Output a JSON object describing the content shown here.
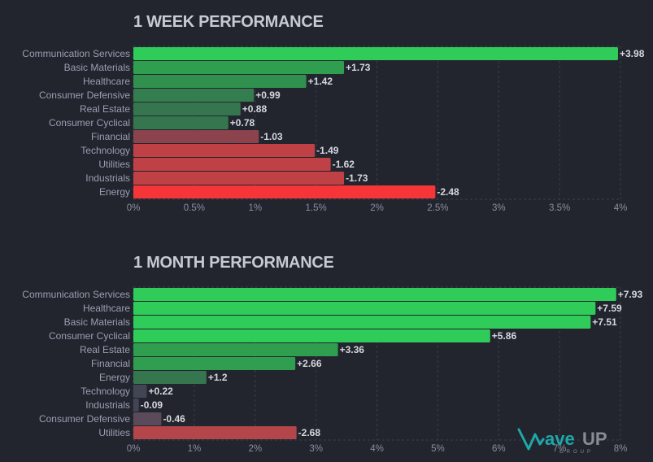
{
  "logo": {
    "name": "WaveUP",
    "wave_text": "ave",
    "up_text": "UP",
    "sub": "GROUP"
  },
  "chart_data": [
    {
      "type": "bar",
      "orientation": "horizontal",
      "title": "1 WEEK PERFORMANCE",
      "xlabel": "",
      "ylabel": "",
      "xlim": [
        0,
        4
      ],
      "x_ticks": [
        "0%",
        "0.5%",
        "1%",
        "1.5%",
        "2%",
        "2.5%",
        "3%",
        "3.5%",
        "4%"
      ],
      "x_tick_values": [
        0,
        0.5,
        1,
        1.5,
        2,
        2.5,
        3,
        3.5,
        4
      ],
      "grid": true,
      "bar_length": "absolute value",
      "categories": [
        "Communication Services",
        "Basic Materials",
        "Healthcare",
        "Consumer Defensive",
        "Real Estate",
        "Consumer Cyclical",
        "Financial",
        "Technology",
        "Utilities",
        "Industrials",
        "Energy"
      ],
      "values": [
        3.98,
        1.73,
        1.42,
        0.99,
        0.88,
        0.78,
        -1.03,
        -1.49,
        -1.62,
        -1.73,
        -2.48
      ],
      "labels": [
        "+3.98",
        "+1.73",
        "+1.42",
        "+0.99",
        "+0.88",
        "+0.78",
        "-1.03",
        "-1.49",
        "-1.62",
        "-1.73",
        "-2.48"
      ],
      "colors": [
        "#30cc5a",
        "#2f9e4f",
        "#30904e",
        "#347d4e",
        "#35764e",
        "#35764e",
        "#8b444e",
        "#bf4045",
        "#bf4045",
        "#bf4045",
        "#f63538"
      ]
    },
    {
      "type": "bar",
      "orientation": "horizontal",
      "title": "1 MONTH PERFORMANCE",
      "xlabel": "",
      "ylabel": "",
      "xlim": [
        0,
        8
      ],
      "x_ticks": [
        "0%",
        "1%",
        "2%",
        "3%",
        "4%",
        "5%",
        "6%",
        "7%",
        "8%"
      ],
      "x_tick_values": [
        0,
        1,
        2,
        3,
        4,
        5,
        6,
        7,
        8
      ],
      "grid": true,
      "bar_length": "absolute value",
      "categories": [
        "Communication Services",
        "Healthcare",
        "Basic Materials",
        "Consumer Cyclical",
        "Real Estate",
        "Financial",
        "Energy",
        "Technology",
        "Industrials",
        "Consumer Defensive",
        "Utilities"
      ],
      "values": [
        7.93,
        7.59,
        7.51,
        5.86,
        3.36,
        2.66,
        1.2,
        0.22,
        -0.09,
        -0.46,
        -2.68
      ],
      "labels": [
        "+7.93",
        "+7.59",
        "+7.51",
        "+5.86",
        "+3.36",
        "+2.66",
        "+1.2",
        "+0.22",
        "-0.09",
        "-0.46",
        "-2.68"
      ],
      "colors": [
        "#30cc5a",
        "#30cc5a",
        "#30cc5a",
        "#30cc5a",
        "#2f9e4f",
        "#2f9e4f",
        "#35764e",
        "#414554",
        "#414554",
        "#5a4a5a",
        "#b4454b"
      ]
    }
  ]
}
